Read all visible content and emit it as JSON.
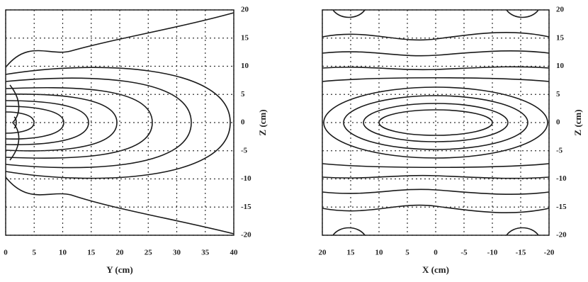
{
  "chart_data": [
    {
      "type": "contour",
      "xlabel": "Y (cm)",
      "ylabel": "Z (cm)",
      "xlim": [
        0,
        40
      ],
      "ylim": [
        -20,
        20
      ],
      "xticks": [
        0,
        5,
        10,
        15,
        20,
        25,
        30,
        35,
        40
      ],
      "yticks": [
        20,
        15,
        10,
        5,
        0,
        -5,
        -10,
        -15,
        -20
      ],
      "grid": true
    },
    {
      "type": "contour",
      "xlabel": "X (cm)",
      "ylabel": "Z (cm)",
      "xlim": [
        20,
        -20
      ],
      "ylim": [
        -20,
        20
      ],
      "xticks": [
        20,
        15,
        10,
        5,
        0,
        -5,
        -10,
        -15,
        -20
      ],
      "yticks": [
        20,
        15,
        10,
        5,
        0,
        -5,
        -10,
        -15,
        -20
      ],
      "grid": true
    }
  ]
}
